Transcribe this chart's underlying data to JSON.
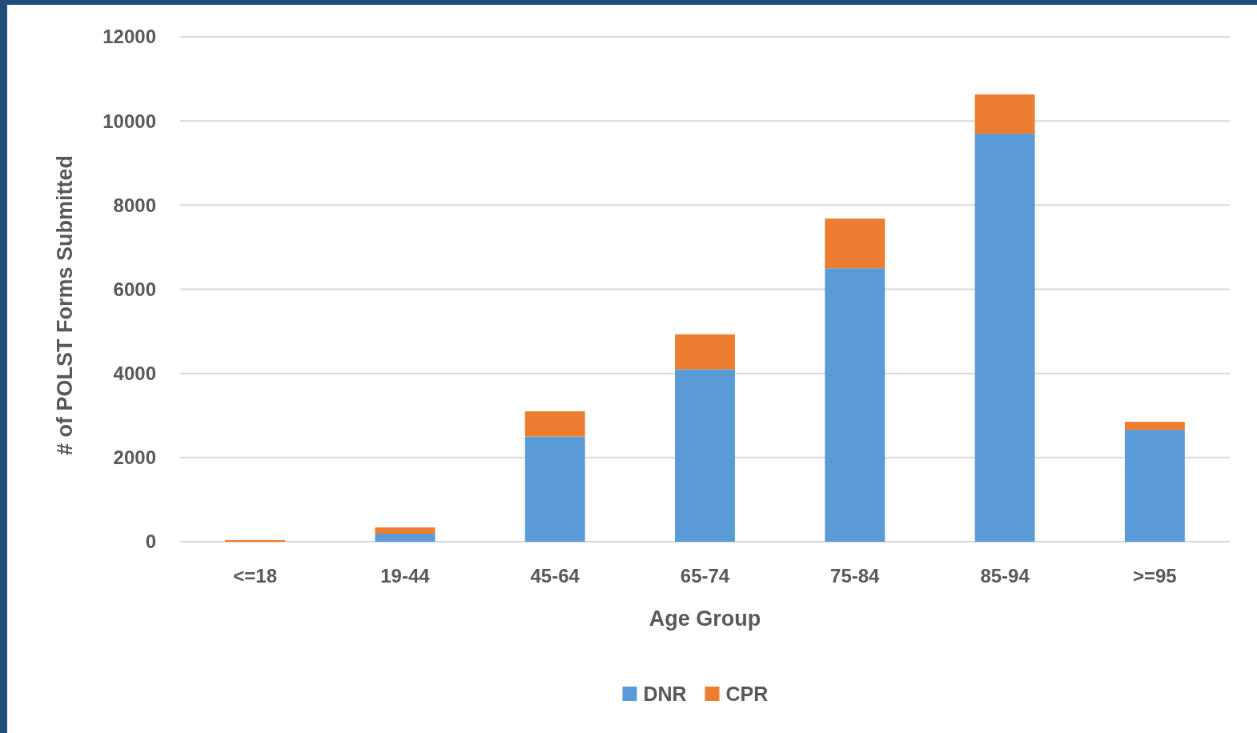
{
  "chart_data": {
    "type": "bar",
    "stacked": true,
    "xlabel": "Age Group",
    "ylabel": "# of POLST Forms Submitted",
    "categories": [
      "<=18",
      "19-44",
      "45-64",
      "65-74",
      "75-84",
      "85-94",
      ">=95"
    ],
    "series": [
      {
        "name": "DNR",
        "color": "#5b9bd5",
        "values": [
          null,
          190,
          2500,
          4100,
          6500,
          9700,
          2660
        ]
      },
      {
        "name": "CPR",
        "color": "#ed7d31",
        "values": [
          40,
          150,
          600,
          830,
          1180,
          930,
          190
        ]
      }
    ],
    "ylim": [
      0,
      12000
    ],
    "yticks": [
      0,
      2000,
      4000,
      6000,
      8000,
      10000,
      12000
    ],
    "grid": "y",
    "legend": "bottom"
  }
}
